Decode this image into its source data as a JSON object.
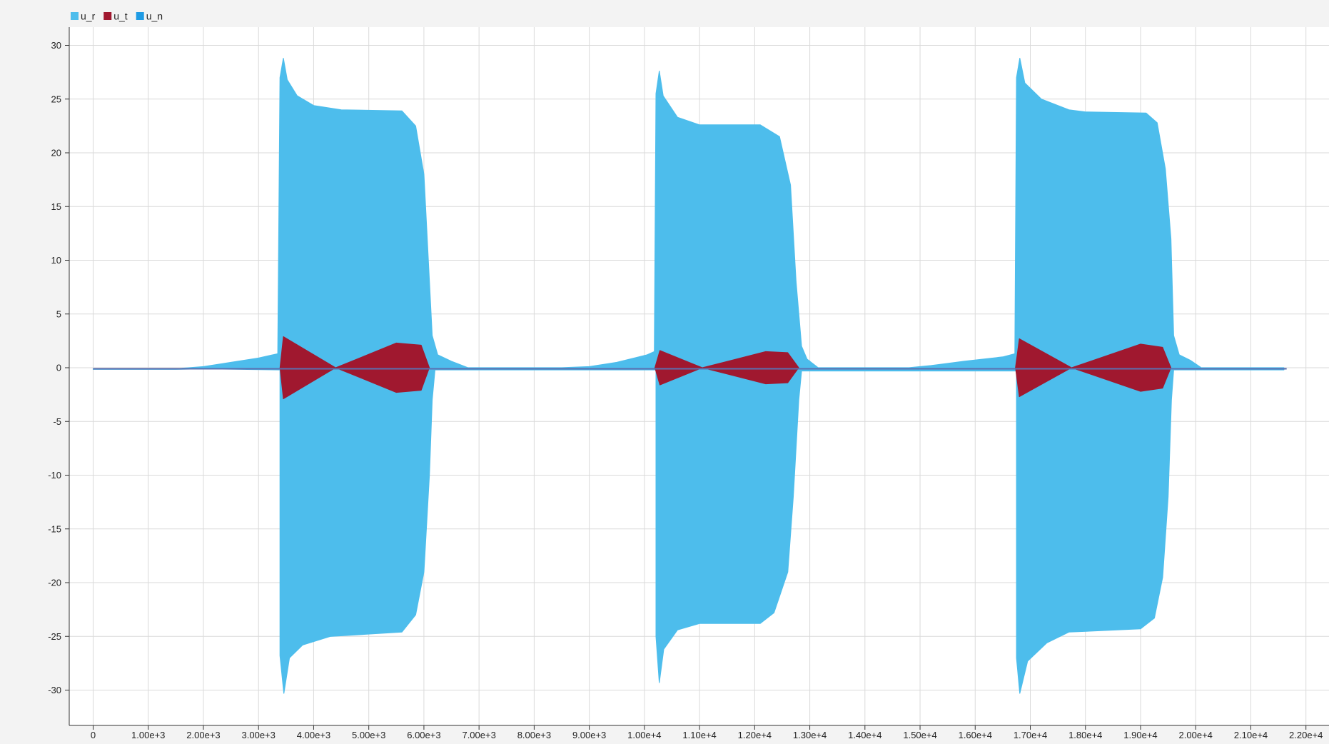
{
  "legend": [
    {
      "name": "u_r",
      "color": "#4dbdec"
    },
    {
      "name": "u_t",
      "color": "#a0182f"
    },
    {
      "name": "u_n",
      "color": "#1f9be4"
    }
  ],
  "chart_data": {
    "type": "line",
    "title": "",
    "xlabel": "",
    "ylabel": "",
    "xlim": [
      -1600,
      22000
    ],
    "ylim": [
      -33,
      31.5
    ],
    "grid": true,
    "legend_position": "top-left",
    "x_ticks": [
      0,
      1000,
      2000,
      3000,
      4000,
      5000,
      6000,
      7000,
      8000,
      9000,
      10000,
      11000,
      12000,
      13000,
      14000,
      15000,
      16000,
      17000,
      18000,
      19000,
      20000,
      21000,
      22000
    ],
    "x_tick_labels": [
      "0",
      "1.00e+3",
      "2.00e+3",
      "3.00e+3",
      "4.00e+3",
      "5.00e+3",
      "6.00e+3",
      "7.00e+3",
      "8.00e+3",
      "9.00e+3",
      "1.00e+4",
      "1.10e+4",
      "1.20e+4",
      "1.30e+4",
      "1.40e+4",
      "1.50e+4",
      "1.60e+4",
      "1.70e+4",
      "1.80e+4",
      "1.90e+4",
      "2.00e+4",
      "2.10e+4",
      "2.20e+4"
    ],
    "y_ticks": [
      30,
      25,
      20,
      15,
      10,
      5,
      0,
      -5,
      -10,
      -15,
      -20,
      -25,
      -30
    ],
    "y_tick_labels": [
      "30",
      "25",
      "20",
      "15",
      "10",
      "5",
      "0",
      "-5",
      "-10",
      "-15",
      "-20",
      "-25",
      "-30"
    ],
    "series": [
      {
        "name": "u_r",
        "color": "#4dbdec",
        "kind": "oscillation envelope",
        "upper": [
          [
            0,
            -0.1
          ],
          [
            1500,
            -0.1
          ],
          [
            2000,
            0.1
          ],
          [
            2500,
            0.5
          ],
          [
            3000,
            0.9
          ],
          [
            3350,
            1.3
          ],
          [
            3390,
            27.0
          ],
          [
            3450,
            28.8
          ],
          [
            3520,
            26.8
          ],
          [
            3700,
            25.3
          ],
          [
            4000,
            24.4
          ],
          [
            4500,
            24.0
          ],
          [
            5600,
            23.9
          ],
          [
            5850,
            22.5
          ],
          [
            6000,
            18.0
          ],
          [
            6080,
            10.0
          ],
          [
            6150,
            3.0
          ],
          [
            6250,
            1.2
          ],
          [
            6500,
            0.6
          ],
          [
            6800,
            0.0
          ],
          [
            8500,
            0.0
          ],
          [
            9000,
            0.1
          ],
          [
            9500,
            0.5
          ],
          [
            10050,
            1.2
          ],
          [
            10180,
            1.5
          ],
          [
            10210,
            25.5
          ],
          [
            10270,
            27.6
          ],
          [
            10340,
            25.3
          ],
          [
            10600,
            23.3
          ],
          [
            11000,
            22.6
          ],
          [
            12100,
            22.6
          ],
          [
            12450,
            21.5
          ],
          [
            12650,
            17.0
          ],
          [
            12750,
            8.0
          ],
          [
            12850,
            2.0
          ],
          [
            12950,
            0.8
          ],
          [
            13150,
            0.0
          ],
          [
            14800,
            0.0
          ],
          [
            15200,
            0.2
          ],
          [
            15800,
            0.6
          ],
          [
            16500,
            1.0
          ],
          [
            16720,
            1.3
          ],
          [
            16750,
            27.0
          ],
          [
            16810,
            28.8
          ],
          [
            16900,
            26.5
          ],
          [
            17200,
            25.0
          ],
          [
            17700,
            24.0
          ],
          [
            18000,
            23.8
          ],
          [
            19100,
            23.7
          ],
          [
            19300,
            22.8
          ],
          [
            19450,
            18.5
          ],
          [
            19550,
            12.0
          ],
          [
            19600,
            3.0
          ],
          [
            19700,
            1.2
          ],
          [
            19900,
            0.7
          ],
          [
            20100,
            0.0
          ],
          [
            21600,
            0.0
          ]
        ],
        "lower": [
          [
            0,
            -0.15
          ],
          [
            1500,
            -0.15
          ],
          [
            2000,
            -0.1
          ],
          [
            3390,
            -0.2
          ],
          [
            3390,
            -26.8
          ],
          [
            3460,
            -30.3
          ],
          [
            3560,
            -27.0
          ],
          [
            3800,
            -25.8
          ],
          [
            4300,
            -25.0
          ],
          [
            5600,
            -24.6
          ],
          [
            5850,
            -23.0
          ],
          [
            6000,
            -19.0
          ],
          [
            6100,
            -10.0
          ],
          [
            6150,
            -3.0
          ],
          [
            6200,
            -0.2
          ],
          [
            10210,
            -0.2
          ],
          [
            10210,
            -25.0
          ],
          [
            10270,
            -29.3
          ],
          [
            10350,
            -26.2
          ],
          [
            10600,
            -24.4
          ],
          [
            11000,
            -23.8
          ],
          [
            12100,
            -23.8
          ],
          [
            12350,
            -22.8
          ],
          [
            12600,
            -19.0
          ],
          [
            12700,
            -12.0
          ],
          [
            12800,
            -3.0
          ],
          [
            12850,
            -0.3
          ],
          [
            16750,
            -0.3
          ],
          [
            16750,
            -27.0
          ],
          [
            16810,
            -30.3
          ],
          [
            16950,
            -27.3
          ],
          [
            17300,
            -25.6
          ],
          [
            17700,
            -24.6
          ],
          [
            19000,
            -24.3
          ],
          [
            19250,
            -23.3
          ],
          [
            19400,
            -19.5
          ],
          [
            19500,
            -12.0
          ],
          [
            19560,
            -3.0
          ],
          [
            19600,
            -0.2
          ],
          [
            21600,
            -0.2
          ]
        ]
      },
      {
        "name": "u_t",
        "color": "#a0182f",
        "kind": "oscillation envelope",
        "lobes": [
          [
            [
              3390,
              0
            ],
            [
              3450,
              2.9
            ],
            [
              4400,
              0
            ],
            [
              5500,
              2.3
            ],
            [
              5950,
              2.1
            ],
            [
              6100,
              0
            ]
          ],
          [
            [
              10190,
              0
            ],
            [
              10280,
              1.6
            ],
            [
              11050,
              0
            ],
            [
              12200,
              1.5
            ],
            [
              12600,
              1.4
            ],
            [
              12800,
              0
            ]
          ],
          [
            [
              16730,
              0
            ],
            [
              16800,
              2.7
            ],
            [
              17750,
              0
            ],
            [
              19000,
              2.2
            ],
            [
              19400,
              1.9
            ],
            [
              19550,
              0
            ]
          ]
        ]
      },
      {
        "name": "u_n",
        "color": "#1f9be4",
        "kind": "baseline",
        "line": [
          [
            0,
            -0.1
          ],
          [
            21650,
            -0.1
          ]
        ]
      }
    ]
  }
}
